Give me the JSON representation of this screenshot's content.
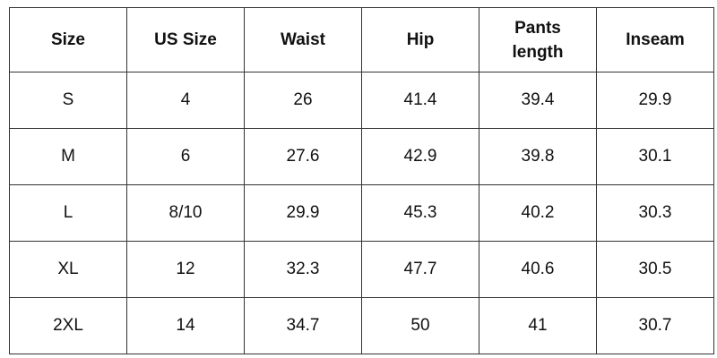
{
  "table": {
    "header": [
      "Size",
      "US Size",
      "Waist",
      "Hip",
      "Pants length",
      "Inseam"
    ],
    "rows": [
      [
        "S",
        "4",
        "26",
        "41.4",
        "39.4",
        "29.9"
      ],
      [
        "M",
        "6",
        "27.6",
        "42.9",
        "39.8",
        "30.1"
      ],
      [
        "L",
        "8/10",
        "29.9",
        "45.3",
        "40.2",
        "30.3"
      ],
      [
        "XL",
        "12",
        "32.3",
        "47.7",
        "40.6",
        "30.5"
      ],
      [
        "2XL",
        "14",
        "34.7",
        "50",
        "41",
        "30.7"
      ]
    ]
  }
}
